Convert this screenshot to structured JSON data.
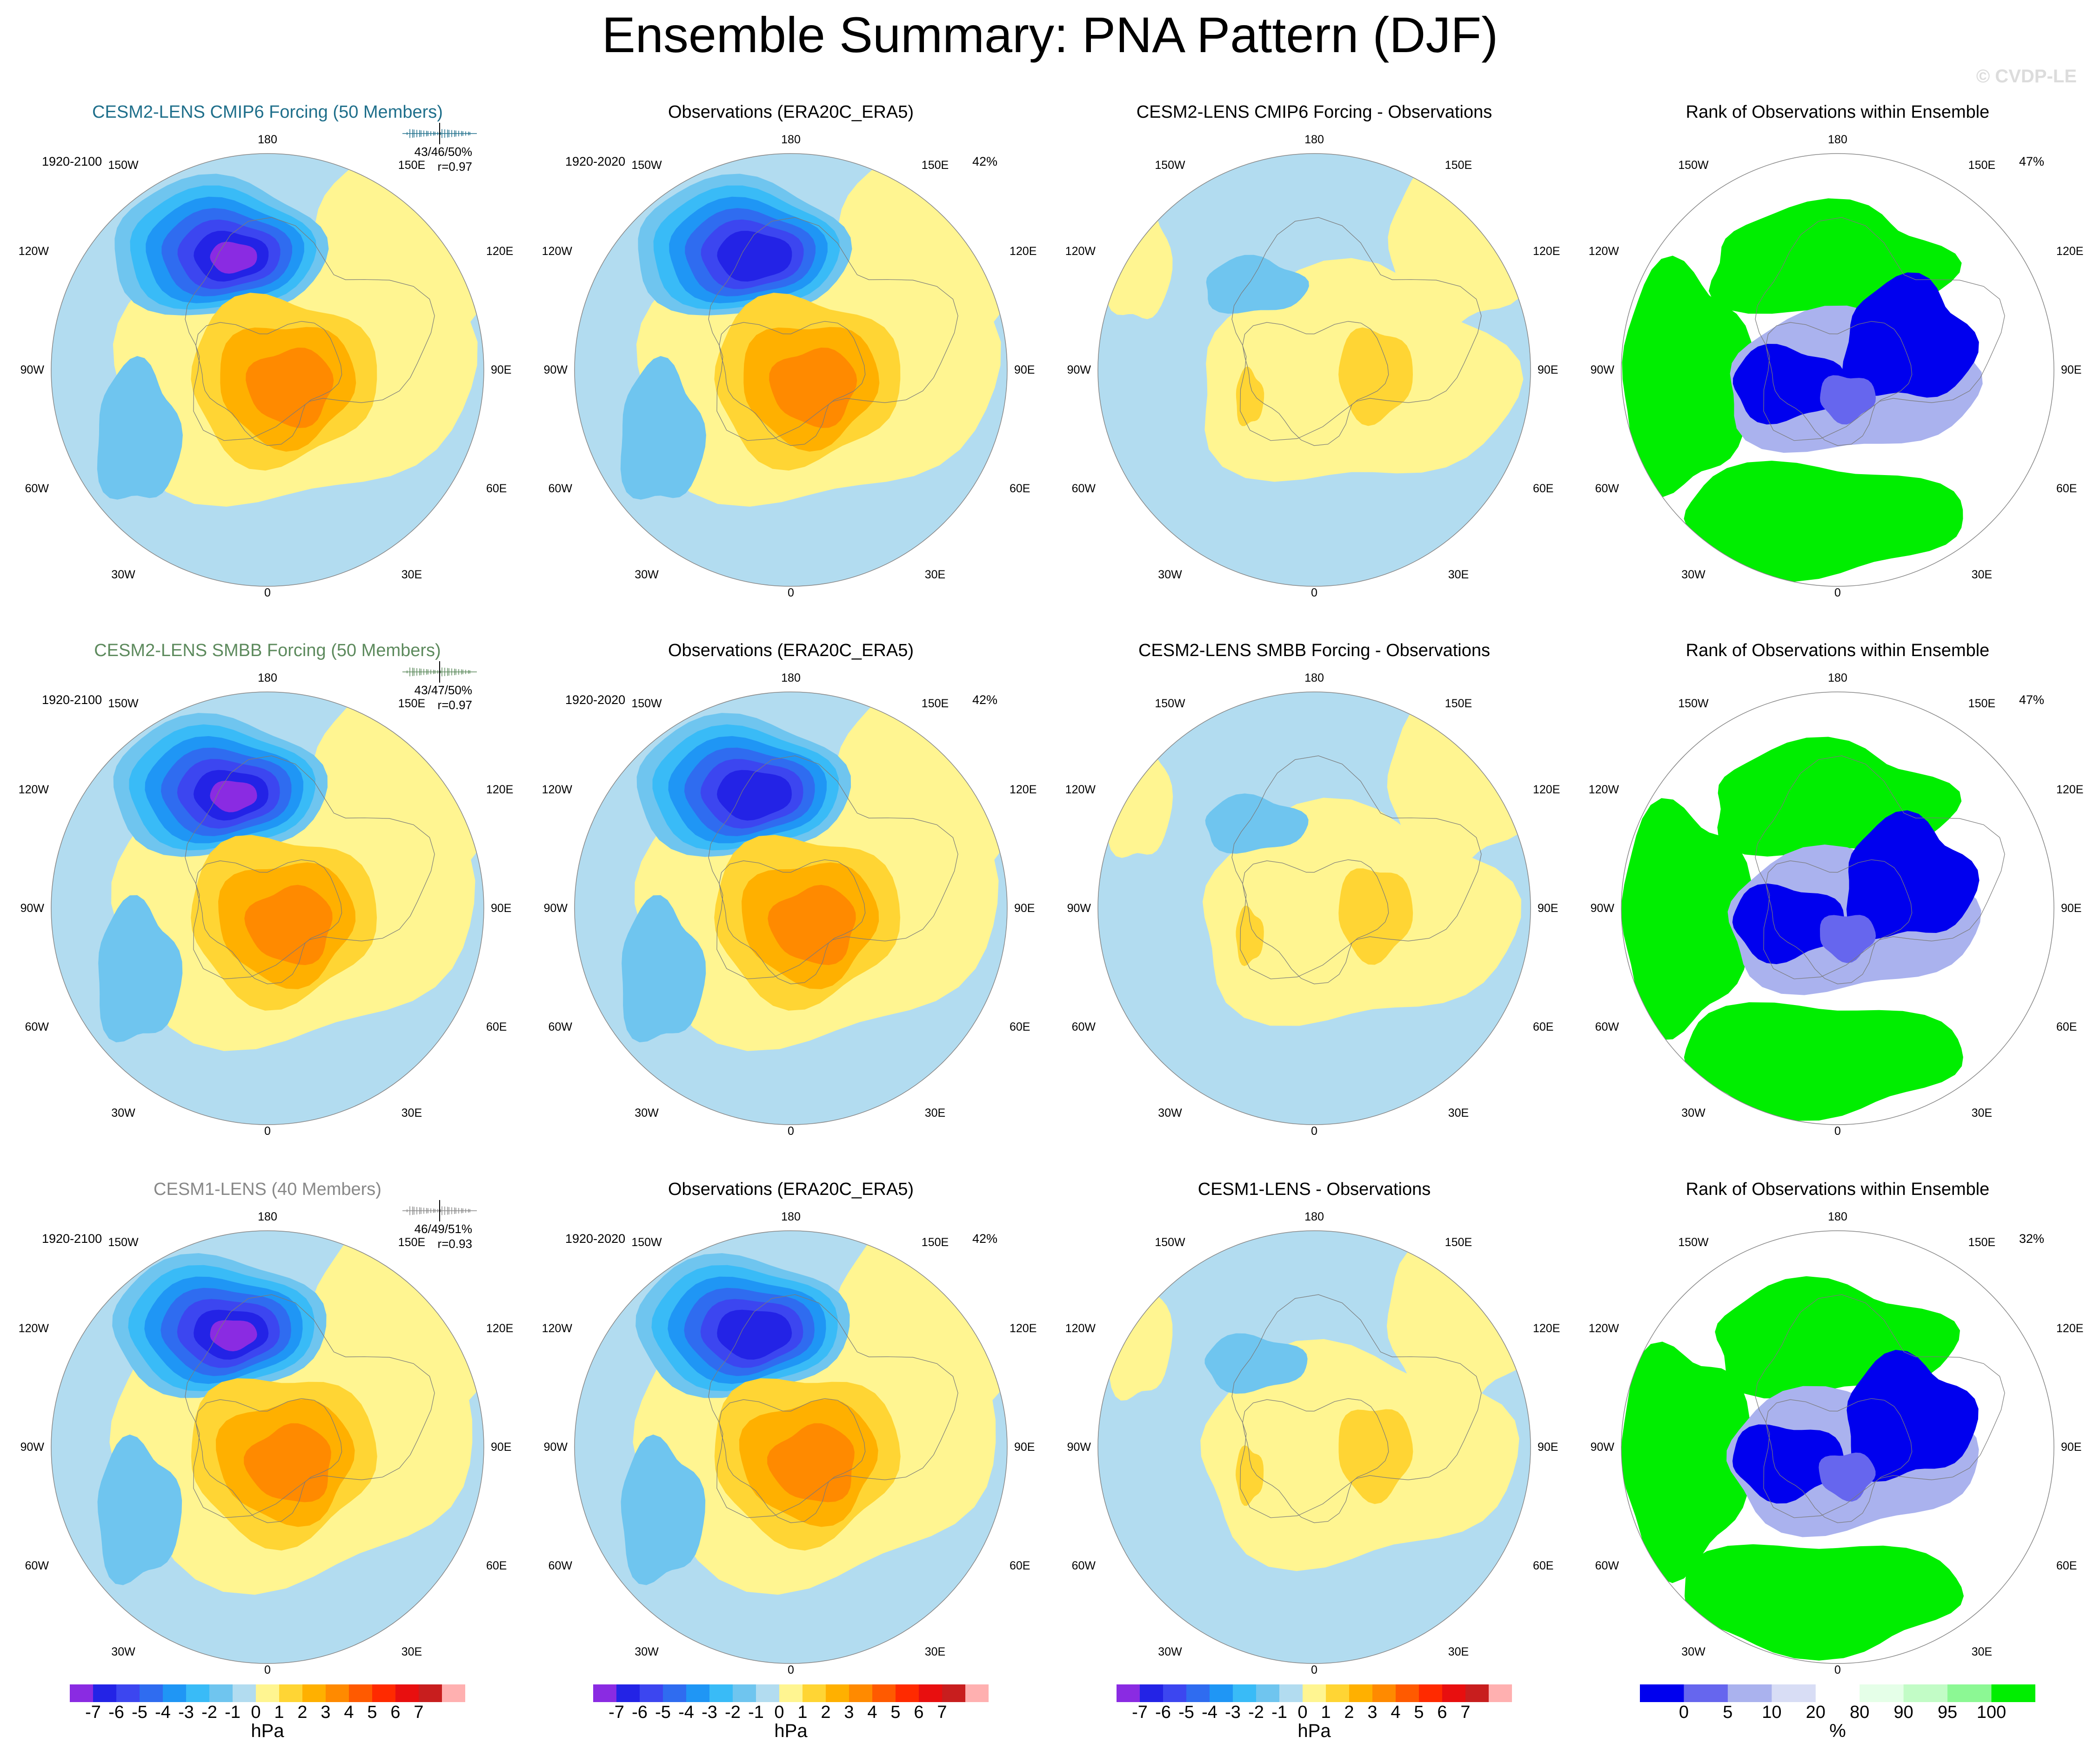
{
  "page_title": "Ensemble Summary: PNA Pattern (DJF)",
  "watermark": "© CVDP-LE",
  "colors": {
    "neg": [
      "#8a2be2",
      "#2323e6",
      "#3c46f0",
      "#2f6cf0",
      "#1f96f5",
      "#39bbf7",
      "#6fc5ef",
      "#b2dcf0"
    ],
    "pos": [
      "#fff591",
      "#ffd534",
      "#ffb000",
      "#ff8a00",
      "#ff5a00",
      "#ff2a00",
      "#e80f0f",
      "#c81e1e",
      "#ffb0b0"
    ],
    "rank": [
      "#0000ee",
      "#6666ee",
      "#aab2ee",
      "#d8ddf5",
      "#ffffff",
      "#e5ffe8",
      "#c2fcc6",
      "#8cf894",
      "#00ee00"
    ]
  },
  "rows": [
    {
      "model": {
        "title": "CESM2-LENS CMIP6 Forcing (50 Members)",
        "period": "1920-2100",
        "stats": "43/46/50%",
        "corr": "r=0.97"
      },
      "obs": {
        "title": "Observations (ERA20C_ERA5)",
        "period": "1920-2020",
        "pct": "42%"
      },
      "diff": {
        "title": "CESM2-LENS CMIP6 Forcing - Observations"
      },
      "rank": {
        "title": "Rank of Observations within Ensemble",
        "pct": "47%"
      }
    },
    {
      "model": {
        "title": "CESM2-LENS SMBB Forcing (50 Members)",
        "period": "1920-2100",
        "stats": "43/47/50%",
        "corr": "r=0.97"
      },
      "obs": {
        "title": "Observations (ERA20C_ERA5)",
        "period": "1920-2020",
        "pct": "42%"
      },
      "diff": {
        "title": "CESM2-LENS SMBB Forcing - Observations"
      },
      "rank": {
        "title": "Rank of Observations within Ensemble",
        "pct": "47%"
      }
    },
    {
      "model": {
        "title": "CESM1-LENS (40 Members)",
        "period": "1920-2100",
        "stats": "46/49/51%",
        "corr": "r=0.93"
      },
      "obs": {
        "title": "Observations (ERA20C_ERA5)",
        "period": "1920-2020",
        "pct": "42%"
      },
      "diff": {
        "title": "CESM1-LENS - Observations"
      },
      "rank": {
        "title": "Rank of Observations within Ensemble",
        "pct": "32%"
      }
    }
  ],
  "map_labels": {
    "top": "180",
    "bottom": "0",
    "ul": "150W",
    "ur": "150E",
    "l1": "120W",
    "r1": "120E",
    "l2": "90W",
    "r2": "90E",
    "l3": "60W",
    "r3": "60E",
    "bl": "30W",
    "br": "30E"
  },
  "colorbars": {
    "hpa": {
      "ticks": [
        "-7",
        "-6",
        "-5",
        "-4",
        "-3",
        "-2",
        "-1",
        "0",
        "1",
        "2",
        "3",
        "4",
        "5",
        "6",
        "7"
      ],
      "unit": "hPa"
    },
    "rank": {
      "ticks": [
        "0",
        "5",
        "10",
        "20",
        "80",
        "90",
        "95",
        "100"
      ],
      "unit": "%"
    }
  }
}
